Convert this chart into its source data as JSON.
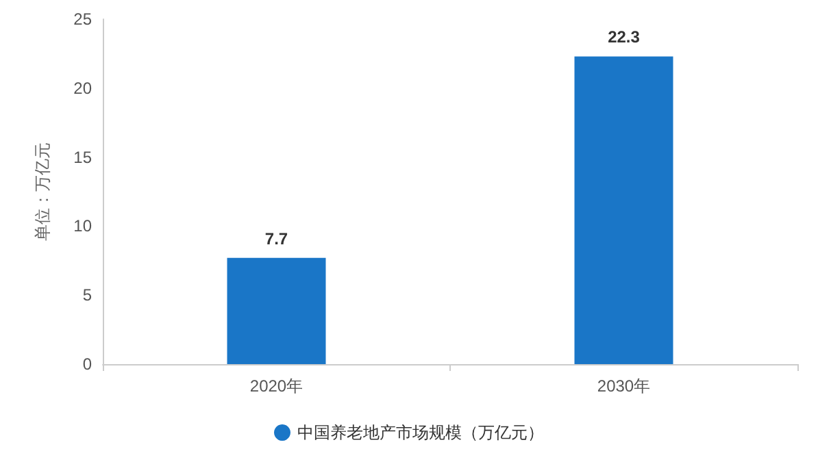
{
  "chart_data": {
    "type": "bar",
    "ylabel": "单位：万亿元",
    "categories": [
      "2020年",
      "2030年"
    ],
    "series": [
      {
        "name": "中国养老地产市场规模（万亿元）",
        "color": "#1a76c7",
        "values": [
          7.7,
          22.3
        ]
      }
    ],
    "ylim": [
      0,
      25
    ],
    "yticks": [
      0,
      5,
      10,
      15,
      20,
      25
    ],
    "data_labels": true,
    "legend": "bottom"
  }
}
